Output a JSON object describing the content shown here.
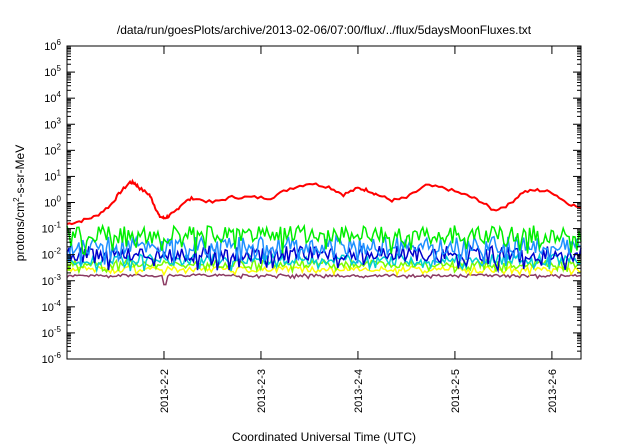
{
  "chart_data": {
    "type": "line",
    "title": "/data/run/goesPlots/archive/2013-02-06/07:00/flux/../flux/5daysMoonFluxes.txt",
    "xlabel": "Coordinated Universal Time (UTC)",
    "ylabel_parts": [
      "protons/cm",
      "2",
      "-s-sr-MeV"
    ],
    "y_scale": "log",
    "ylim": [
      1e-06,
      1000000.0
    ],
    "y_ticks": [
      {
        "base": "10",
        "exp": "-6",
        "value": -6
      },
      {
        "base": "10",
        "exp": "-5",
        "value": -5
      },
      {
        "base": "10",
        "exp": "-4",
        "value": -4
      },
      {
        "base": "10",
        "exp": "-3",
        "value": -3
      },
      {
        "base": "10",
        "exp": "-2",
        "value": -2
      },
      {
        "base": "10",
        "exp": "-1",
        "value": -1
      },
      {
        "base": "10",
        "exp": "0",
        "value": 0
      },
      {
        "base": "10",
        "exp": "1",
        "value": 1
      },
      {
        "base": "10",
        "exp": "2",
        "value": 2
      },
      {
        "base": "10",
        "exp": "3",
        "value": 3
      },
      {
        "base": "10",
        "exp": "4",
        "value": 4
      },
      {
        "base": "10",
        "exp": "5",
        "value": 5
      },
      {
        "base": "10",
        "exp": "6",
        "value": 6
      }
    ],
    "x_range_days": [
      "2013-02-01 00:00",
      "2013-02-06 07:00"
    ],
    "x_ticks": [
      {
        "label": "2013-2-2",
        "day": 1
      },
      {
        "label": "2013-2-3",
        "day": 2
      },
      {
        "label": "2013-2-4",
        "day": 3
      },
      {
        "label": "2013-2-5",
        "day": 4
      },
      {
        "label": "2013-2-6",
        "day": 5
      }
    ],
    "grid": false,
    "series": [
      {
        "color": "#ff0000",
        "x_days": [
          0.0,
          0.15,
          0.3,
          0.45,
          0.55,
          0.65,
          0.7,
          0.75,
          0.85,
          0.9,
          0.95,
          1.0,
          1.05,
          1.1,
          1.2,
          1.3,
          1.5,
          1.7,
          1.9,
          2.1,
          2.3,
          2.5,
          2.7,
          2.85,
          3.0,
          3.1,
          3.2,
          3.35,
          3.5,
          3.7,
          3.9,
          4.1,
          4.25,
          4.4,
          4.55,
          4.7,
          4.85,
          5.0,
          5.15,
          5.3
        ],
        "y": [
          0.15,
          0.2,
          0.3,
          0.8,
          2.5,
          6.0,
          5.5,
          3.5,
          2.0,
          0.8,
          0.3,
          0.25,
          0.3,
          0.4,
          1.0,
          1.5,
          1.0,
          1.6,
          1.6,
          1.5,
          3.5,
          5.5,
          4.0,
          2.0,
          3.5,
          3.0,
          2.0,
          1.2,
          1.5,
          4.5,
          3.5,
          2.0,
          1.2,
          0.5,
          0.8,
          2.5,
          3.0,
          2.5,
          1.0,
          0.6
        ]
      },
      {
        "color": "#00ee00",
        "base": 0.06,
        "amp": 0.35
      },
      {
        "color": "#1e90ff",
        "base": 0.022,
        "amp": 0.35
      },
      {
        "color": "#0000cd",
        "base": 0.011,
        "amp": 0.3
      },
      {
        "color": "#00ced1",
        "base": 0.0065,
        "amp": 0.2
      },
      {
        "color": "#7cfc00",
        "base": 0.0045,
        "amp": 0.15
      },
      {
        "color": "#ffff00",
        "base": 0.0028,
        "amp": 0.1
      },
      {
        "color": "#8b3a62",
        "base": 0.0016,
        "amp": 0.05
      }
    ]
  }
}
